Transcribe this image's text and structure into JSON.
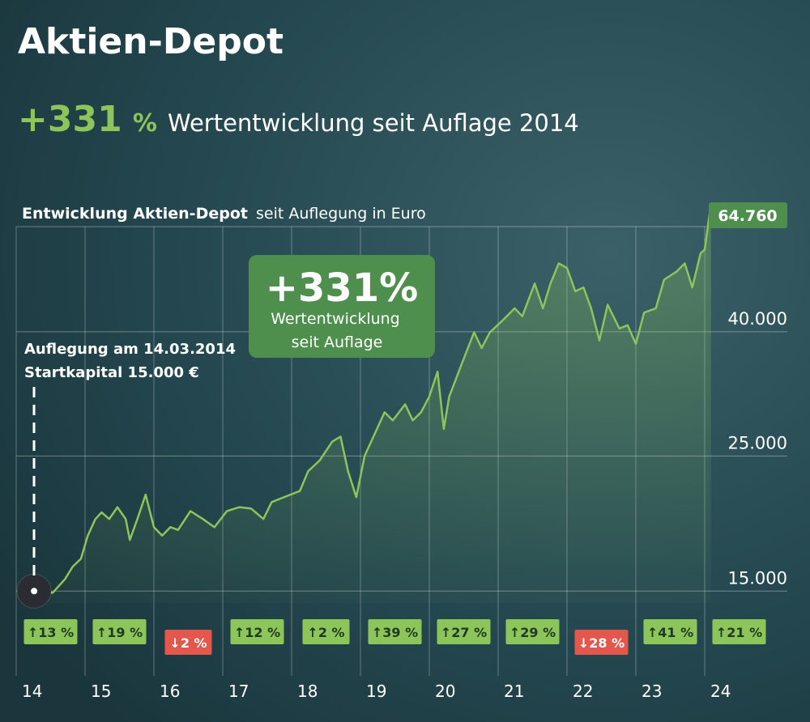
{
  "header": {
    "title": "Aktien-Depot",
    "headline_value": "+331",
    "headline_unit": "%",
    "headline_text": "Wertentwicklung seit Auflage 2014"
  },
  "chart_data": {
    "type": "line",
    "title": "Entwicklung Aktien-Depot",
    "subtitle": "seit Auflegung in Euro",
    "log_scale": true,
    "grid": true,
    "xlim": [
      14,
      24.4
    ],
    "xticks": [
      14,
      15,
      16,
      17,
      18,
      19,
      20,
      21,
      22,
      23,
      24
    ],
    "ylim": [
      13000,
      70000
    ],
    "yticks": [
      {
        "value": 15000,
        "label": "15.000"
      },
      {
        "value": 25000,
        "label": "25.000"
      },
      {
        "value": 40000,
        "label": "40.000"
      }
    ],
    "x": [
      14.26,
      14.53,
      14.71,
      14.82,
      14.94,
      15.04,
      15.15,
      15.24,
      15.35,
      15.47,
      15.59,
      15.65,
      15.76,
      15.88,
      16.0,
      16.12,
      16.24,
      16.35,
      16.53,
      16.71,
      16.88,
      17.06,
      17.24,
      17.41,
      17.59,
      17.71,
      17.94,
      18.12,
      18.24,
      18.41,
      18.59,
      18.71,
      18.82,
      18.94,
      19.06,
      19.24,
      19.35,
      19.47,
      19.65,
      19.76,
      19.88,
      20.0,
      20.12,
      20.21,
      20.29,
      20.47,
      20.65,
      20.76,
      20.88,
      21.06,
      21.24,
      21.35,
      21.53,
      21.65,
      21.76,
      21.88,
      22.0,
      22.12,
      22.24,
      22.35,
      22.47,
      22.59,
      22.76,
      22.88,
      23.0,
      23.12,
      23.29,
      23.41,
      23.59,
      23.71,
      23.82,
      23.94,
      24.0,
      24.09
    ],
    "series": [
      {
        "color": "#8dc55a",
        "values": [
          15000,
          14900,
          15700,
          16450,
          16950,
          18500,
          19700,
          20200,
          19700,
          20600,
          19700,
          18200,
          19700,
          21600,
          19100,
          18500,
          19100,
          18900,
          20300,
          19700,
          19100,
          20300,
          20600,
          20500,
          19700,
          21000,
          21500,
          21900,
          23600,
          24600,
          26400,
          26900,
          23600,
          21400,
          25000,
          27700,
          29500,
          28600,
          30400,
          28600,
          29500,
          31300,
          34400,
          27700,
          31300,
          35400,
          39900,
          37600,
          39900,
          41700,
          43700,
          42400,
          48000,
          43700,
          48000,
          51800,
          50900,
          46600,
          47300,
          43700,
          38700,
          44300,
          40500,
          41000,
          38200,
          43000,
          43700,
          48700,
          50200,
          51800,
          47300,
          53800,
          54600,
          64760
        ]
      }
    ],
    "end_label": "64.760",
    "callout": {
      "value": "+331%",
      "lines": [
        "Wertentwicklung",
        "seit Auflage"
      ]
    },
    "annotations": [
      "Auflegung am 14.03.2014",
      "Startkapital 15.000 €"
    ],
    "annual_returns": {
      "values": [
        13,
        19,
        -2,
        12,
        2,
        39,
        27,
        29,
        -28,
        41,
        21
      ],
      "value_labels": [
        "↑13 %",
        "↑19 %",
        "↓2 %",
        "↑12 %",
        "↑2 %",
        "↑39 %",
        "↑27 %",
        "↑29 %",
        "↓28 %",
        "↑41 %",
        "↑21 %"
      ],
      "colors": {
        "up": "#8dc55a",
        "down": "#e4574c"
      }
    }
  }
}
